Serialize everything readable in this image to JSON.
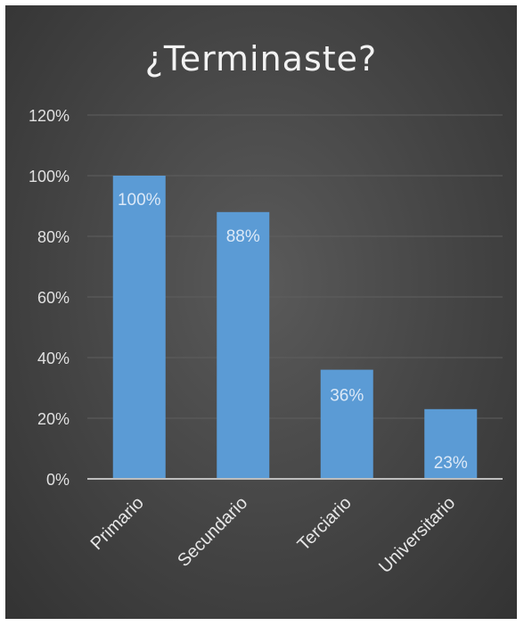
{
  "chart_data": {
    "type": "bar",
    "title": "¿Terminaste?",
    "categories": [
      "Primario",
      "Secundario",
      "Terciario",
      "Universitario"
    ],
    "values": [
      100,
      88,
      36,
      23
    ],
    "data_labels": [
      "100%",
      "88%",
      "36%",
      "23%"
    ],
    "ylim": [
      0,
      120
    ],
    "yticks": [
      "0%",
      "20%",
      "40%",
      "60%",
      "80%",
      "100%",
      "120%"
    ],
    "grid": true,
    "legend": "none",
    "bar_color": "#5b9bd5",
    "background_color": "#444444"
  }
}
